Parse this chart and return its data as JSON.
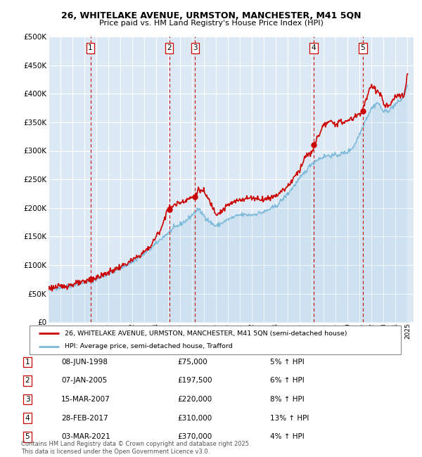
{
  "title1": "26, WHITELAKE AVENUE, URMSTON, MANCHESTER, M41 5QN",
  "title2": "Price paid vs. HM Land Registry's House Price Index (HPI)",
  "legend_label1": "26, WHITELAKE AVENUE, URMSTON, MANCHESTER, M41 5QN (semi-detached house)",
  "legend_label2": "HPI: Average price, semi-detached house, Trafford",
  "footer": "Contains HM Land Registry data © Crown copyright and database right 2025.\nThis data is licensed under the Open Government Licence v3.0.",
  "transactions": [
    {
      "num": 1,
      "date": "08-JUN-1998",
      "price": 75000,
      "pct": "5%",
      "dir": "↑"
    },
    {
      "num": 2,
      "date": "07-JAN-2005",
      "price": 197500,
      "pct": "6%",
      "dir": "↑"
    },
    {
      "num": 3,
      "date": "15-MAR-2007",
      "price": 220000,
      "pct": "8%",
      "dir": "↑"
    },
    {
      "num": 4,
      "date": "28-FEB-2017",
      "price": 310000,
      "pct": "13%",
      "dir": "↑"
    },
    {
      "num": 5,
      "date": "03-MAR-2021",
      "price": 370000,
      "pct": "4%",
      "dir": "↑"
    }
  ],
  "hpi_color": "#7ab8d9",
  "price_color": "#cc0000",
  "bg_color": "#dce9f5",
  "grid_color": "#ffffff",
  "vline_color": "#cc0000",
  "ylim": [
    0,
    500000
  ],
  "yticks": [
    0,
    50000,
    100000,
    150000,
    200000,
    250000,
    300000,
    350000,
    400000,
    450000,
    500000
  ],
  "xlim_start": 1995.0,
  "xlim_end": 2025.5
}
